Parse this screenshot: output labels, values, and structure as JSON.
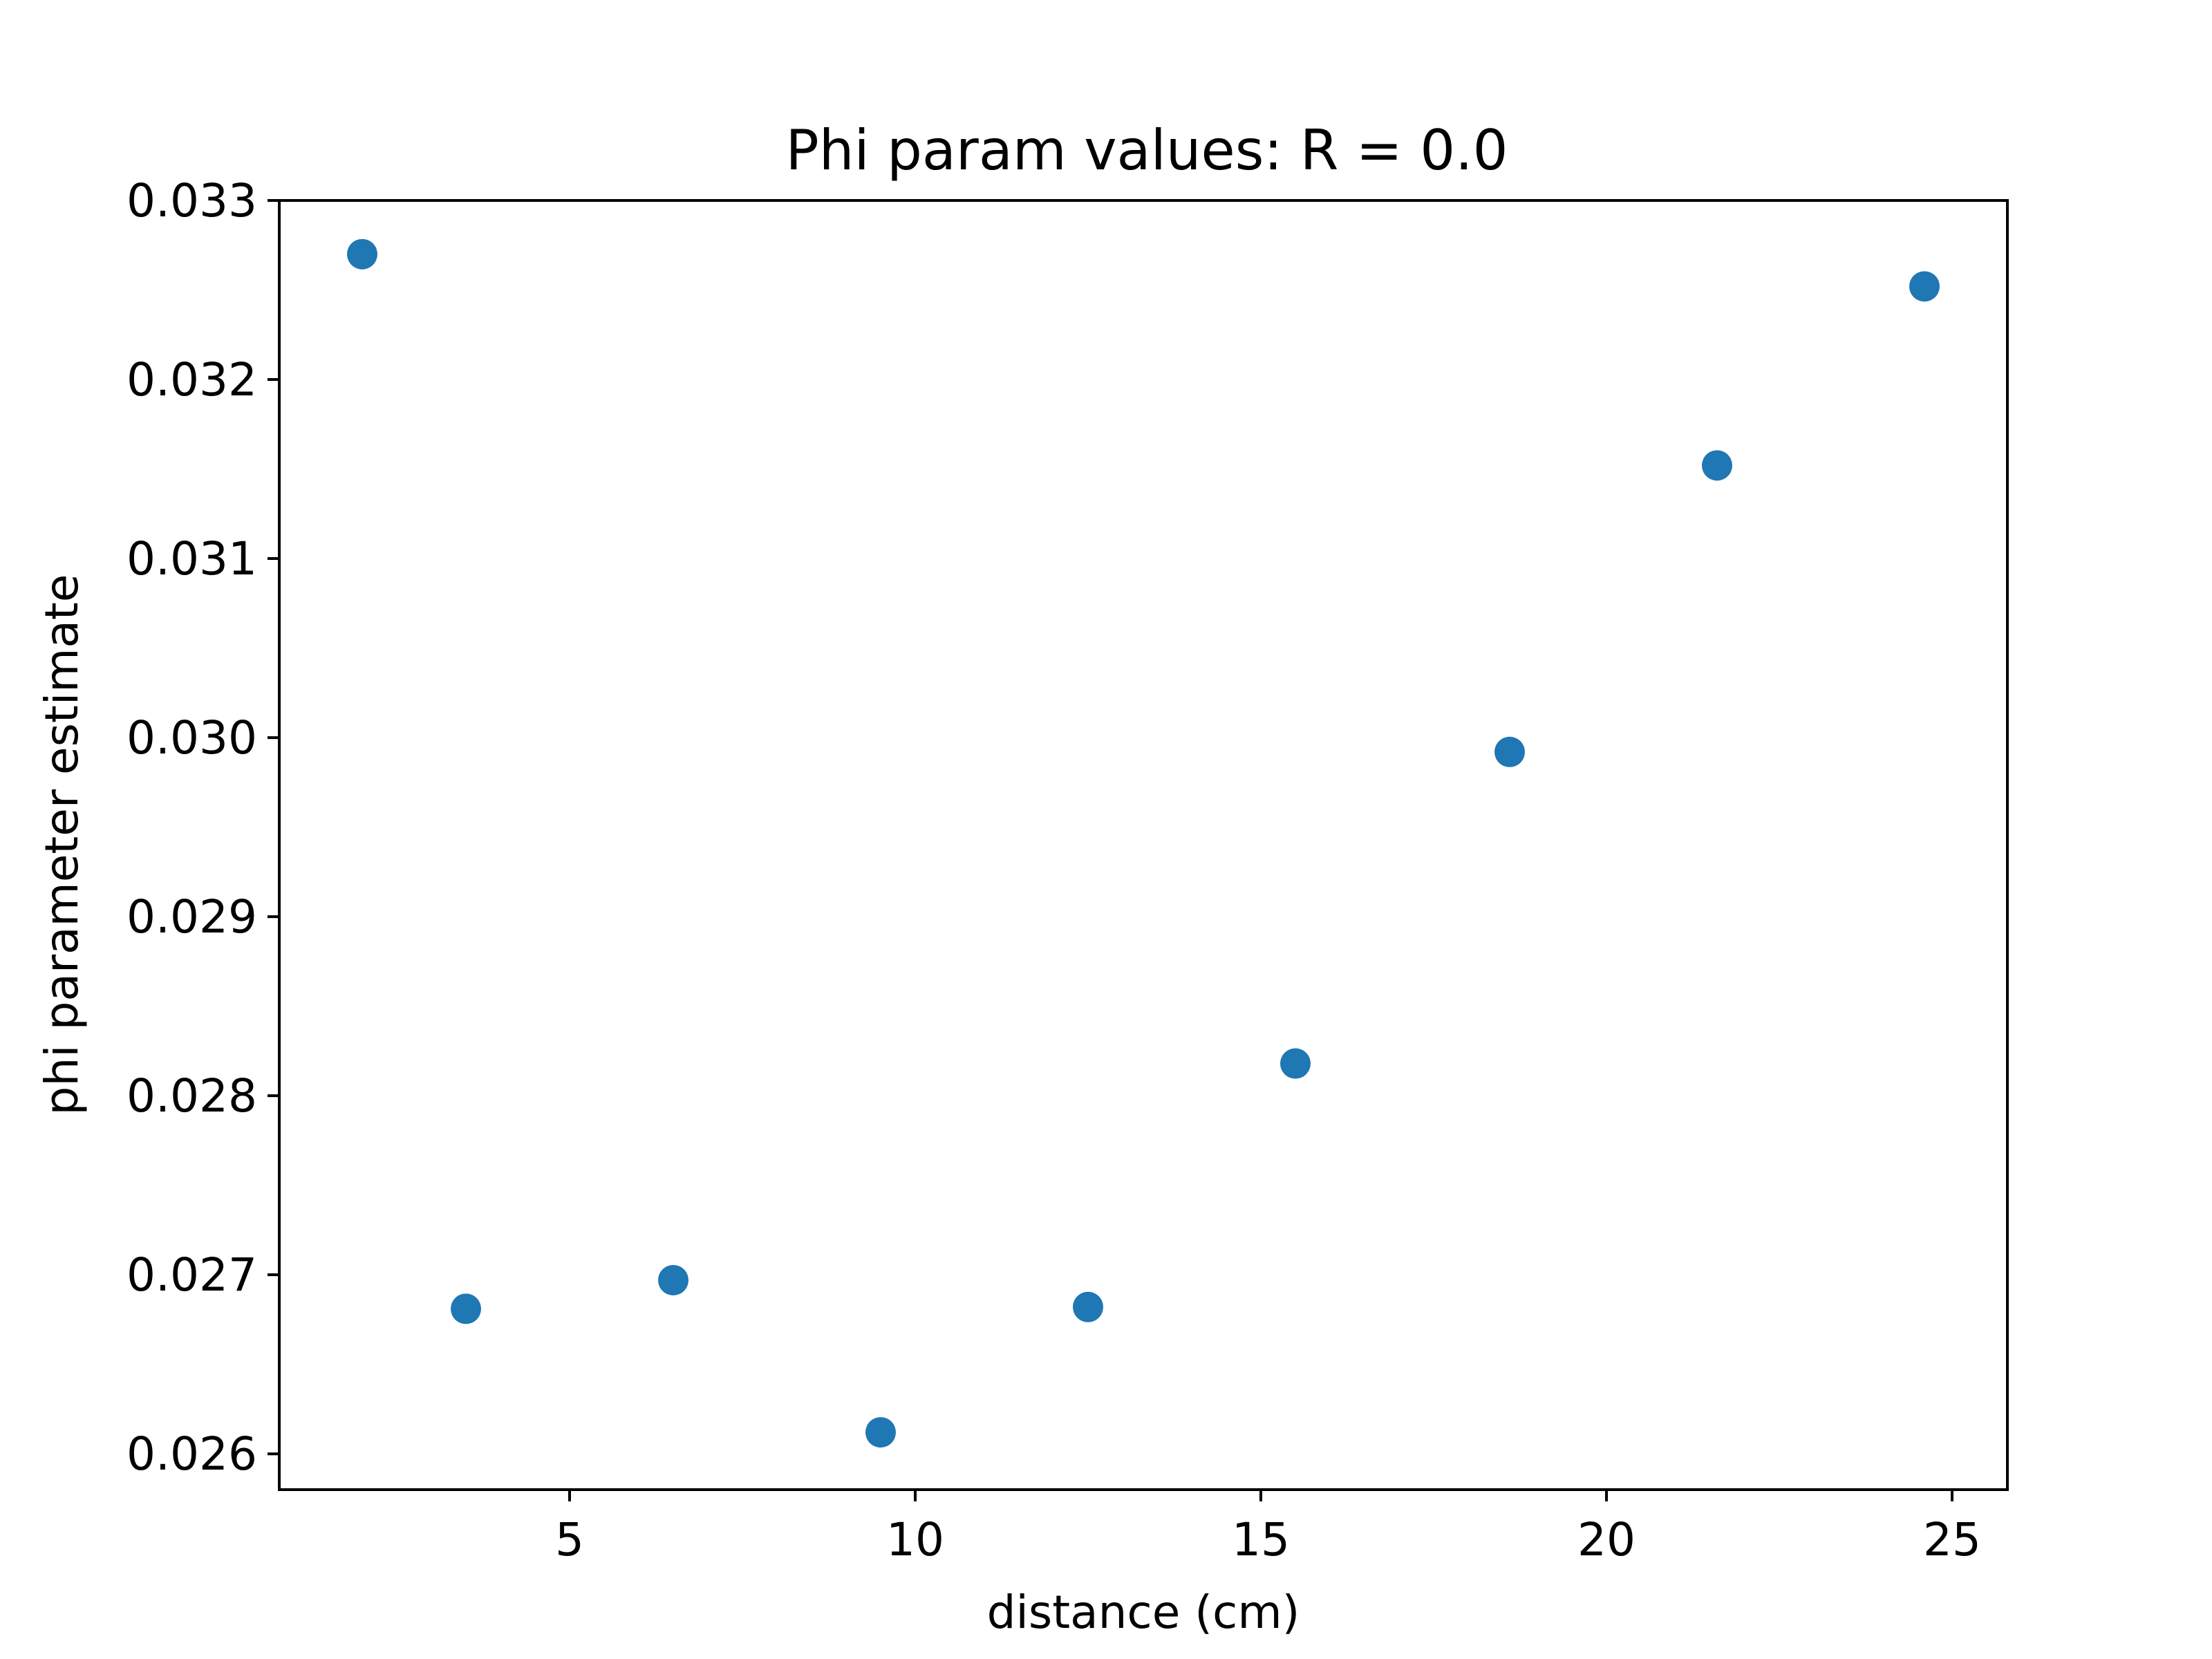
{
  "chart_data": {
    "type": "scatter",
    "title": "Phi param values: R = 0.0",
    "xlabel": "distance (cm)",
    "ylabel": "phi parameter estimate",
    "xlim": [
      0.8,
      25.8
    ],
    "ylim": [
      0.0258,
      0.033
    ],
    "x_ticks": [
      5,
      10,
      15,
      20,
      25
    ],
    "y_ticks": [
      0.026,
      0.027,
      0.028,
      0.029,
      0.03,
      0.031,
      0.032,
      0.033
    ],
    "x_tick_labels": [
      "5",
      "10",
      "15",
      "20",
      "25"
    ],
    "y_tick_labels": [
      "0.026",
      "0.027",
      "0.028",
      "0.029",
      "0.030",
      "0.031",
      "0.032",
      "0.033"
    ],
    "grid": false,
    "series": [
      {
        "color": "#1f77b4",
        "points": [
          {
            "x": 2.0,
            "y": 0.0327
          },
          {
            "x": 3.5,
            "y": 0.02681
          },
          {
            "x": 6.5,
            "y": 0.02697
          },
          {
            "x": 9.5,
            "y": 0.02612
          },
          {
            "x": 12.5,
            "y": 0.02682
          },
          {
            "x": 15.5,
            "y": 0.02818
          },
          {
            "x": 18.6,
            "y": 0.02992
          },
          {
            "x": 21.6,
            "y": 0.03152
          },
          {
            "x": 24.6,
            "y": 0.03252
          }
        ]
      }
    ]
  }
}
